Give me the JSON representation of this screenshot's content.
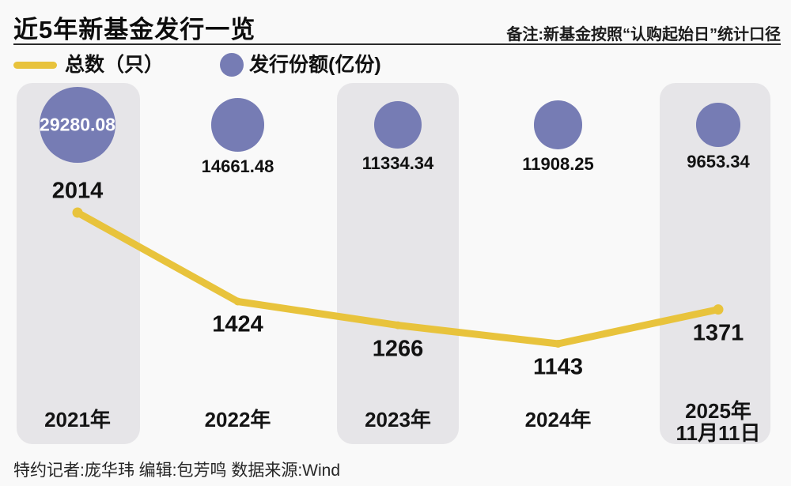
{
  "page": {
    "background": "#f9f9f9"
  },
  "header": {
    "title": "近5年新基金发行一览",
    "note": "备注:新基金按照“认购起始日”统计口径"
  },
  "chart_data": {
    "type": "line",
    "title": "近5年新基金发行一览",
    "categories": [
      "2021年",
      "2022年",
      "2023年",
      "2024年",
      "2025年\n11月11日"
    ],
    "series": [
      {
        "name": "总数（只）",
        "type": "line",
        "color": "#e8c33c",
        "values": [
          2014,
          1424,
          1266,
          1143,
          1371
        ]
      },
      {
        "name": "发行份额(亿份)",
        "type": "bubble",
        "color": "#767cb4",
        "values": [
          29280.08,
          14661.48,
          11334.34,
          11908.25,
          9653.34
        ]
      }
    ],
    "highlighted_columns": [
      0,
      2,
      4
    ],
    "highlight_color": "#e6e5e8",
    "legend_position": "top-left",
    "grid": false,
    "annotations": {
      "first_bubble_label_inside": true,
      "line_label_above_first_point": true
    }
  },
  "footer": {
    "credits": "特约记者:庞华玮  编辑:包芳鸣  数据来源:Wind"
  }
}
